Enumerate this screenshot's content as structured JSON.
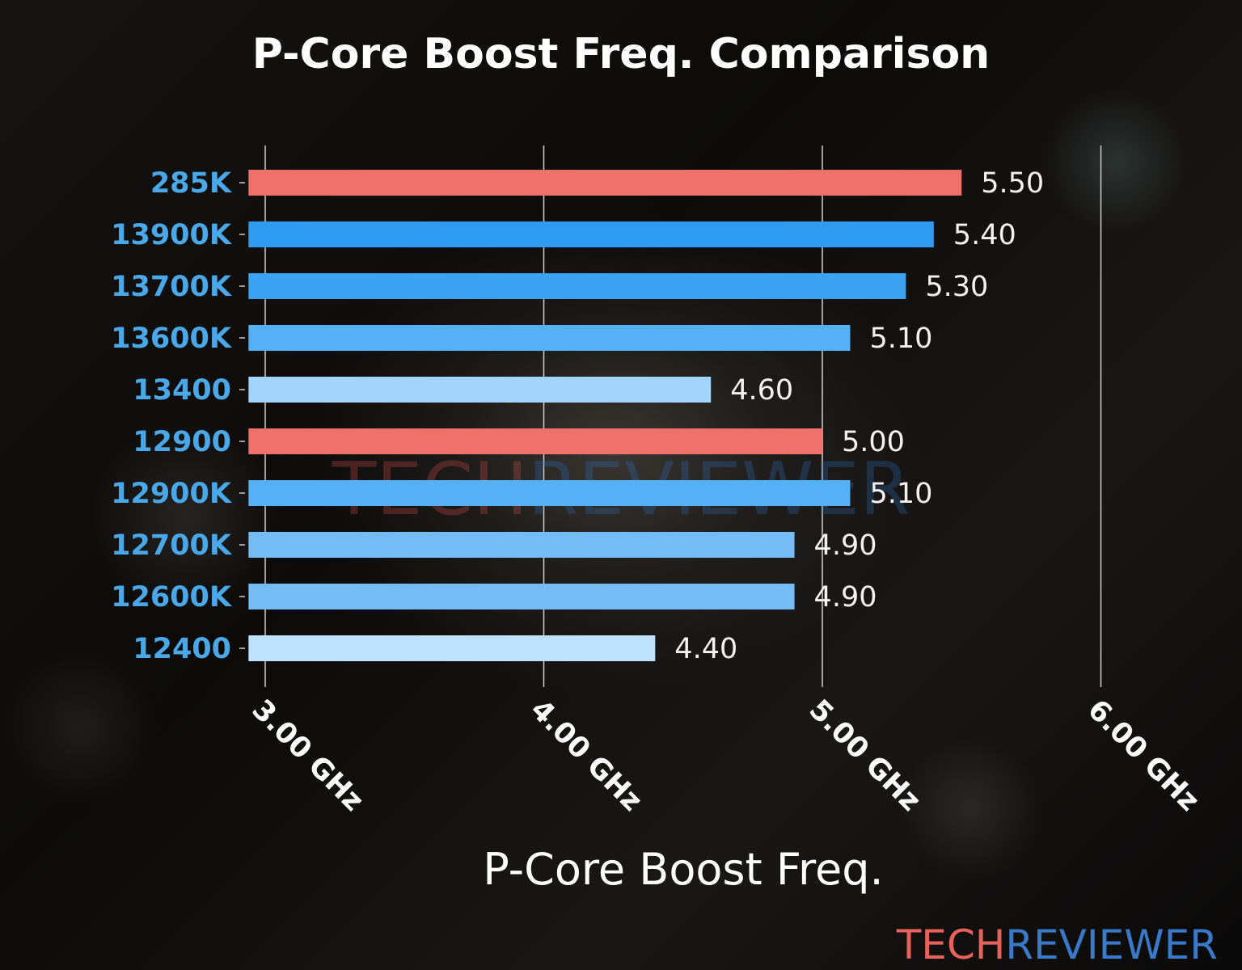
{
  "chart_data": {
    "type": "bar",
    "orientation": "horizontal",
    "title": "P-Core Boost Freq. Comparison",
    "xlabel": "P-Core Boost Freq.",
    "ylabel": "",
    "categories": [
      "285K",
      "13900K",
      "13700K",
      "13600K",
      "13400",
      "12900",
      "12900K",
      "12700K",
      "12600K",
      "12400"
    ],
    "values": [
      5.5,
      5.4,
      5.3,
      5.1,
      4.6,
      5.0,
      5.1,
      4.9,
      4.9,
      4.4
    ],
    "value_labels": [
      "5.50",
      "5.40",
      "5.30",
      "5.10",
      "4.60",
      "5.00",
      "5.10",
      "4.90",
      "4.90",
      "4.40"
    ],
    "bar_colors": [
      "#f0706c",
      "#2f9cf2",
      "#3aa3f4",
      "#55b0f6",
      "#a3d4fb",
      "#f0706c",
      "#55b0f6",
      "#74bcf6",
      "#74bcf6",
      "#bee2fd"
    ],
    "xticks": [
      3,
      4,
      5,
      6
    ],
    "xtick_labels": [
      "3.00 GHz",
      "4.00 GHz",
      "5.00 GHz",
      "6.00 GHz"
    ],
    "xlim": [
      2.94,
      6.1
    ],
    "grid": true,
    "label_color": "#4aa8e8"
  },
  "watermark": {
    "part1": "TECH",
    "part2": "REVIEWER"
  },
  "logo": {
    "part1": "TECH",
    "part2": "REVIEWER",
    "color1": "#e8625c",
    "color2": "#3a78c8"
  }
}
